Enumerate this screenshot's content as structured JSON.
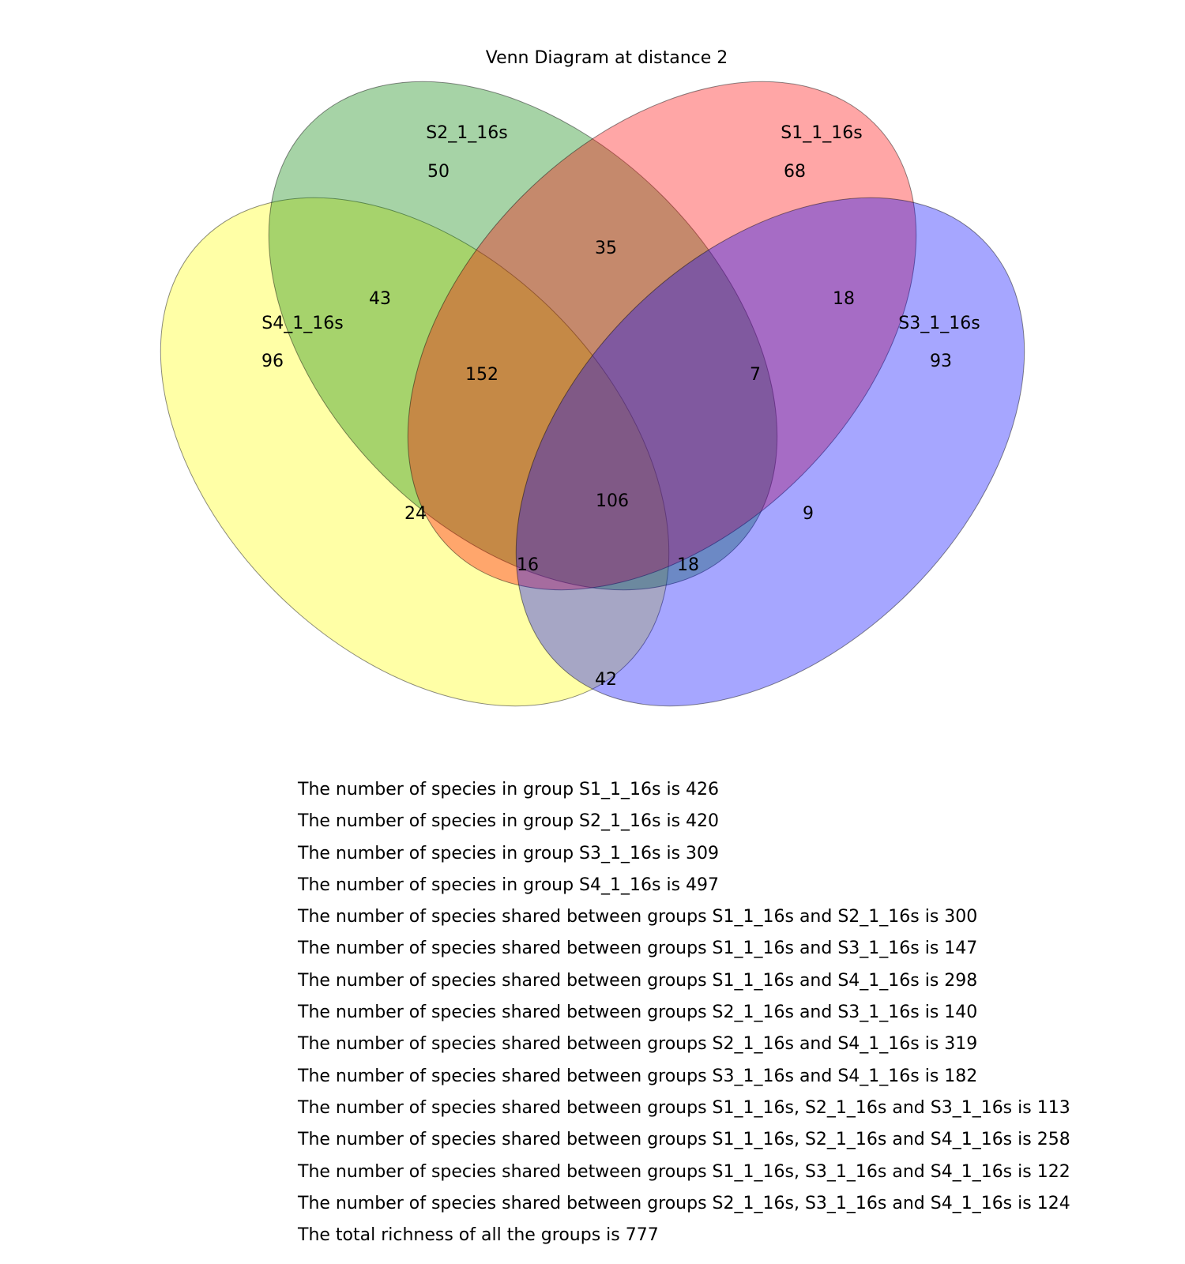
{
  "title": "Venn Diagram at distance 2",
  "sets": [
    {
      "id": "s1",
      "name": "S1_1_16s",
      "color": "#ff0000",
      "total": 426
    },
    {
      "id": "s2",
      "name": "S2_1_16s",
      "color": "#008000",
      "total": 420
    },
    {
      "id": "s3",
      "name": "S3_1_16s",
      "color": "#0000ff",
      "total": 309
    },
    {
      "id": "s4",
      "name": "S4_1_16s",
      "color": "#ffff00",
      "total": 497
    }
  ],
  "regions": {
    "only_s1": "68",
    "only_s2": "50",
    "only_s3": "93",
    "only_s4": "96",
    "s1_s2": "35",
    "s1_s3": "18",
    "s2_s4": "43",
    "s3_s4": "42",
    "s1_s4": "24",
    "s2_s3": "9",
    "s1_s2_s4": "152",
    "s1_s2_s3": "7",
    "s1_s3_s4": "16",
    "s2_s3_s4": "18",
    "all": "106"
  },
  "summary_lines": [
    "The number of species in group S1_1_16s is 426",
    "The number of species in group S2_1_16s is 420",
    "The number of species in group S3_1_16s is 309",
    "The number of species in group S4_1_16s is 497",
    "The number of species shared between groups S1_1_16s and S2_1_16s is 300",
    "The number of species shared between groups S1_1_16s and S3_1_16s is 147",
    "The number of species shared between groups S1_1_16s and S4_1_16s is 298",
    "The number of species shared between groups S2_1_16s and S3_1_16s is 140",
    "The number of species shared between groups S2_1_16s and S4_1_16s is 319",
    "The number of species shared between groups S3_1_16s and S4_1_16s is 182",
    "The number of species shared between groups S1_1_16s, S2_1_16s and S3_1_16s is 113",
    "The number of species shared between groups S1_1_16s, S2_1_16s and S4_1_16s is 258",
    "The number of species shared between groups S1_1_16s, S3_1_16s and S4_1_16s is 122",
    "The number of species shared between groups S2_1_16s, S3_1_16s and S4_1_16s is 124",
    "The total richness of all the groups is 777"
  ]
}
